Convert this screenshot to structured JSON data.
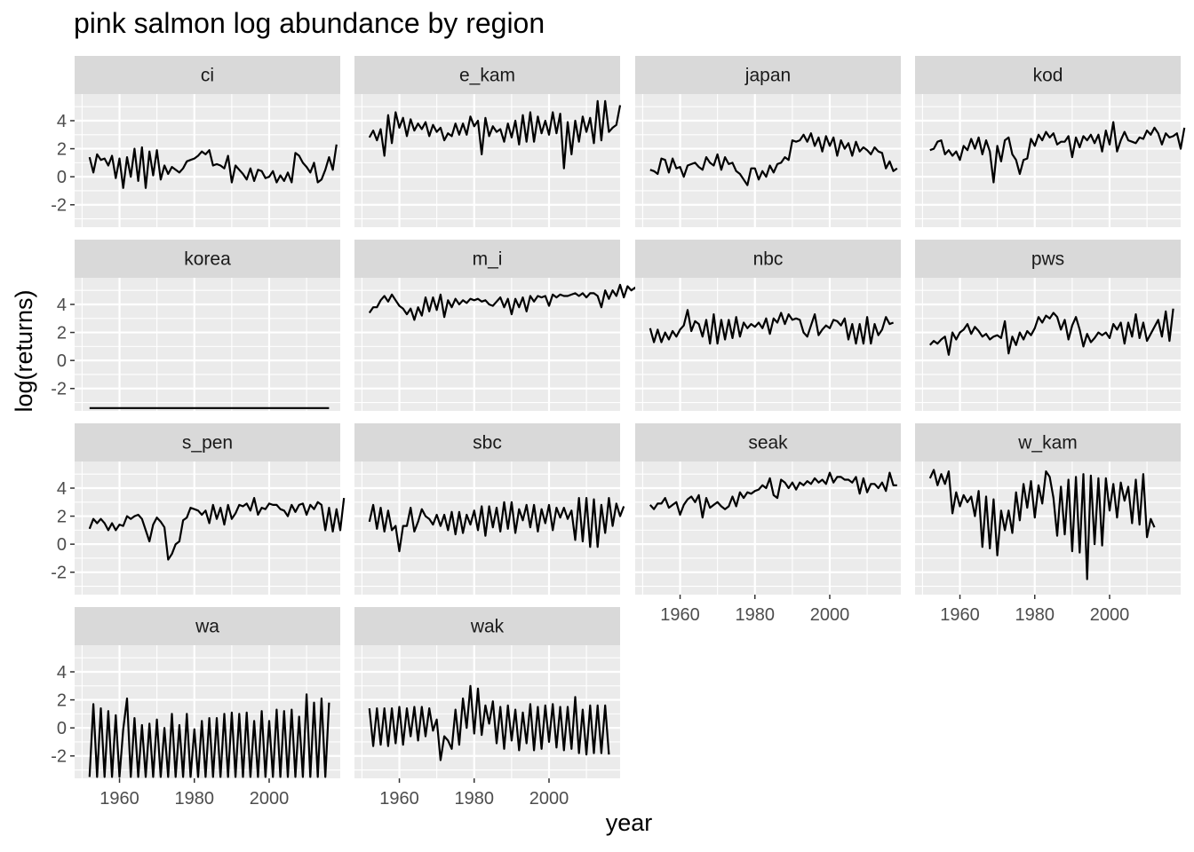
{
  "chart_data": {
    "type": "line",
    "title": "pink salmon log abundance by region",
    "xlabel": "year",
    "ylabel": "log(returns)",
    "xlim": [
      1948,
      2019
    ],
    "ylim": [
      -3.6,
      5.9
    ],
    "x_ticks": [
      1960,
      1980,
      2000
    ],
    "y_ticks": [
      -2,
      0,
      2,
      4
    ],
    "facet_layout": "4 columns, shared axes",
    "colors": {
      "panel_bg": "#EBEBEB",
      "strip_bg": "#D9D9D9",
      "grid": "#FFFFFF",
      "line": "#000000",
      "tick_text": "#4D4D4D"
    },
    "series": [
      {
        "name": "ci",
        "x_start": 1952,
        "values": [
          1.4,
          0.3,
          1.6,
          1.2,
          1.3,
          0.8,
          1.5,
          -0.1,
          1.3,
          -0.8,
          1.4,
          0.0,
          2.0,
          -0.3,
          2.1,
          -0.8,
          1.8,
          0.1,
          1.9,
          -0.2,
          0.8,
          0.2,
          0.7,
          0.5,
          0.3,
          0.6,
          1.1,
          1.2,
          1.3,
          1.5,
          1.8,
          1.6,
          1.9,
          0.8,
          0.9,
          0.8,
          0.6,
          1.5,
          -0.4,
          0.8,
          0.5,
          0.2,
          -0.2,
          0.6,
          -0.3,
          0.5,
          0.4,
          -0.1,
          0.0,
          0.4,
          -0.4,
          0.1,
          -0.3,
          0.3,
          -0.4,
          1.7,
          1.5,
          1.0,
          0.7,
          0.3,
          1.0,
          -0.4,
          -0.2,
          0.5,
          1.4,
          0.5,
          2.3
        ]
      },
      {
        "name": "e_kam",
        "x_start": 1952,
        "values": [
          2.8,
          3.3,
          2.6,
          3.4,
          1.5,
          4.4,
          2.4,
          4.6,
          3.5,
          4.2,
          2.9,
          4.1,
          3.3,
          3.8,
          3.4,
          3.9,
          2.9,
          3.7,
          3.2,
          3.5,
          2.6,
          3.1,
          2.9,
          3.8,
          3.0,
          3.8,
          3.0,
          4.3,
          3.6,
          4.0,
          1.6,
          4.2,
          2.9,
          3.6,
          3.2,
          3.4,
          2.5,
          3.8,
          2.8,
          4.0,
          2.3,
          4.4,
          2.5,
          4.6,
          2.5,
          4.3,
          3.1,
          4.0,
          3.0,
          4.6,
          3.1,
          4.5,
          0.6,
          3.9,
          1.6,
          4.0,
          2.5,
          4.3,
          3.2,
          4.2,
          2.4,
          5.4,
          2.6,
          5.4,
          3.2,
          3.5,
          3.7,
          5.1
        ]
      },
      {
        "name": "japan",
        "x_start": 1952,
        "values": [
          0.5,
          0.4,
          0.2,
          1.3,
          1.2,
          0.3,
          1.3,
          0.6,
          0.7,
          0.0,
          0.8,
          0.9,
          1.0,
          0.7,
          0.5,
          1.4,
          1.0,
          0.8,
          1.6,
          0.5,
          1.4,
          0.9,
          1.0,
          0.4,
          0.2,
          -0.2,
          -0.6,
          0.6,
          0.6,
          -0.2,
          0.4,
          0.0,
          0.8,
          0.3,
          0.9,
          1.0,
          1.4,
          1.2,
          2.6,
          2.5,
          2.6,
          3.0,
          2.5,
          3.1,
          2.2,
          2.8,
          1.8,
          2.9,
          2.2,
          2.8,
          1.5,
          2.6,
          2.0,
          2.4,
          1.5,
          2.5,
          1.8,
          2.1,
          1.9,
          1.6,
          2.1,
          1.8,
          1.7,
          0.6,
          1.1,
          0.4,
          0.6
        ]
      },
      {
        "name": "kod",
        "x_start": 1952,
        "values": [
          1.9,
          2.0,
          2.5,
          2.6,
          1.6,
          1.9,
          1.5,
          1.8,
          1.2,
          2.2,
          1.9,
          2.7,
          2.0,
          2.8,
          1.6,
          2.6,
          1.8,
          -0.4,
          2.2,
          1.1,
          2.6,
          2.8,
          1.6,
          1.2,
          0.2,
          1.2,
          1.3,
          2.7,
          2.2,
          3.0,
          2.6,
          3.2,
          2.8,
          3.1,
          2.3,
          2.5,
          2.5,
          2.9,
          1.4,
          2.8,
          2.1,
          2.9,
          2.6,
          3.0,
          2.4,
          3.0,
          1.8,
          3.3,
          2.3,
          3.9,
          1.8,
          2.6,
          3.2,
          2.6,
          2.5,
          2.4,
          2.8,
          2.7,
          3.3,
          3.0,
          3.5,
          3.1,
          2.3,
          3.1,
          2.8,
          2.9,
          3.1,
          2.0,
          3.5
        ]
      },
      {
        "name": "korea",
        "x_start": 1952,
        "values": [
          -3.4,
          -3.4,
          -3.4,
          -3.4,
          -3.4,
          -3.4,
          -3.4,
          -3.4,
          -3.4,
          -3.4,
          -3.4,
          -3.4,
          -3.4,
          -3.4,
          -3.4,
          -3.4,
          -3.4,
          -3.4,
          -3.4,
          -3.4,
          -3.4,
          -3.4,
          -3.4,
          -3.4,
          -3.4,
          -3.4,
          -3.4,
          -3.4,
          -3.4,
          -3.4,
          -3.4,
          -3.4,
          -3.4,
          -3.4,
          -3.4,
          -3.4,
          -3.4,
          -3.4,
          -3.4,
          -3.4,
          -3.4,
          -3.4,
          -3.4,
          -3.4,
          -3.4,
          -3.4,
          -3.4,
          -3.4,
          -3.4,
          -3.4,
          -3.4,
          -3.4,
          -3.4,
          -3.4,
          -3.4,
          -3.4,
          -3.4,
          -3.4,
          -3.4,
          -3.4,
          -3.4,
          -3.4,
          -3.4,
          -3.4,
          -3.4
        ]
      },
      {
        "name": "m_i",
        "x_start": 1952,
        "values": [
          3.4,
          3.8,
          3.8,
          4.3,
          4.6,
          4.2,
          4.7,
          4.3,
          3.9,
          3.7,
          3.3,
          3.7,
          2.9,
          3.8,
          3.2,
          4.5,
          3.5,
          4.5,
          3.6,
          4.7,
          3.1,
          4.3,
          3.8,
          4.4,
          4.0,
          4.3,
          4.1,
          4.4,
          4.3,
          4.4,
          4.2,
          4.3,
          4.0,
          3.9,
          4.2,
          4.5,
          3.8,
          4.4,
          3.3,
          4.4,
          3.8,
          4.5,
          3.5,
          4.6,
          4.2,
          4.6,
          4.5,
          4.6,
          3.9,
          4.7,
          4.5,
          4.7,
          4.6,
          4.6,
          4.7,
          4.8,
          4.6,
          4.8,
          4.5,
          4.8,
          4.8,
          4.6,
          3.8,
          5.0,
          4.4,
          5.0,
          4.6,
          5.4,
          4.5,
          5.3,
          5.0,
          5.2,
          4.7,
          4.2
        ]
      },
      {
        "name": "nbc",
        "x_start": 1952,
        "values": [
          2.3,
          1.3,
          2.2,
          1.3,
          2.0,
          1.5,
          2.1,
          1.7,
          2.2,
          2.5,
          3.6,
          2.1,
          2.8,
          2.6,
          1.7,
          2.9,
          1.2,
          3.3,
          1.2,
          2.9,
          1.5,
          2.9,
          1.6,
          3.1,
          1.7,
          2.7,
          2.3,
          2.6,
          2.4,
          2.7,
          2.3,
          3.0,
          1.9,
          3.0,
          2.7,
          3.4,
          2.6,
          3.3,
          2.9,
          3.0,
          2.9,
          2.0,
          1.7,
          2.5,
          3.3,
          1.8,
          2.2,
          2.5,
          2.3,
          2.9,
          2.8,
          2.5,
          3.0,
          1.5,
          2.6,
          1.2,
          2.6,
          1.2,
          3.1,
          1.2,
          2.6,
          1.8,
          2.2,
          3.1,
          2.6,
          2.7
        ]
      },
      {
        "name": "pws",
        "x_start": 1952,
        "values": [
          1.1,
          1.4,
          1.2,
          1.5,
          1.7,
          0.4,
          2.0,
          1.5,
          2.0,
          2.2,
          2.6,
          1.9,
          2.4,
          2.1,
          1.7,
          1.9,
          1.5,
          1.7,
          1.8,
          1.6,
          2.8,
          0.5,
          1.7,
          1.1,
          2.0,
          1.5,
          2.1,
          1.8,
          2.3,
          3.1,
          2.7,
          3.2,
          3.0,
          3.4,
          3.1,
          2.2,
          2.9,
          1.5,
          2.5,
          3.1,
          2.2,
          1.0,
          1.9,
          1.3,
          1.6,
          2.0,
          1.8,
          2.0,
          1.6,
          2.6,
          2.2,
          2.7,
          1.2,
          2.7,
          1.7,
          3.3,
          1.6,
          2.7,
          1.4,
          1.9,
          2.4,
          2.9,
          1.7,
          3.5,
          1.4,
          3.7
        ]
      },
      {
        "name": "s_pen",
        "x_start": 1952,
        "values": [
          1.1,
          1.8,
          1.5,
          1.8,
          1.5,
          1.0,
          1.5,
          1.0,
          1.4,
          1.3,
          2.0,
          1.8,
          2.0,
          2.1,
          1.8,
          1.0,
          0.2,
          1.4,
          1.9,
          1.6,
          1.2,
          -1.1,
          -0.7,
          0.0,
          0.2,
          1.7,
          1.9,
          2.6,
          2.5,
          2.4,
          2.1,
          2.4,
          1.5,
          2.8,
          1.8,
          2.6,
          1.4,
          2.8,
          1.8,
          2.2,
          2.8,
          2.7,
          2.9,
          2.4,
          3.3,
          2.1,
          2.6,
          2.5,
          2.9,
          2.8,
          2.8,
          2.5,
          2.4,
          2.0,
          2.8,
          2.3,
          2.8,
          2.9,
          2.1,
          2.8,
          2.5,
          3.0,
          2.8,
          1.0,
          2.6,
          0.9,
          2.5,
          1.0,
          3.3
        ]
      },
      {
        "name": "sbc",
        "x_start": 1952,
        "values": [
          1.6,
          2.8,
          1.1,
          2.6,
          0.9,
          2.4,
          1.0,
          1.3,
          -0.5,
          1.3,
          1.3,
          2.6,
          0.9,
          1.6,
          2.5,
          2.0,
          1.8,
          1.4,
          2.1,
          1.3,
          2.1,
          1.0,
          2.3,
          0.7,
          2.3,
          0.8,
          2.1,
          1.4,
          2.4,
          1.0,
          2.7,
          0.6,
          2.7,
          1.2,
          2.6,
          0.9,
          3.0,
          1.1,
          3.0,
          0.8,
          2.5,
          1.7,
          2.8,
          1.2,
          2.8,
          0.9,
          2.5,
          1.5,
          2.8,
          1.0,
          2.6,
          1.9,
          2.6,
          1.8,
          2.4,
          0.3,
          3.3,
          0.2,
          3.3,
          -0.2,
          3.2,
          -0.2,
          2.8,
          0.8,
          3.3,
          1.3,
          2.9,
          2.0,
          2.7
        ]
      },
      {
        "name": "seak",
        "x_start": 1952,
        "values": [
          2.8,
          2.5,
          2.9,
          2.9,
          3.3,
          2.6,
          2.8,
          3.0,
          2.1,
          2.8,
          3.2,
          3.4,
          3.0,
          3.5,
          1.9,
          3.3,
          2.6,
          2.8,
          3.0,
          2.7,
          2.5,
          2.7,
          3.4,
          2.7,
          3.7,
          3.3,
          3.7,
          3.6,
          3.8,
          3.9,
          4.2,
          4.0,
          4.7,
          3.5,
          3.3,
          4.6,
          4.4,
          4.0,
          4.4,
          3.9,
          4.4,
          4.2,
          4.5,
          4.3,
          4.7,
          4.4,
          4.6,
          4.3,
          5.1,
          4.4,
          4.8,
          4.8,
          4.6,
          4.6,
          4.4,
          4.8,
          3.6,
          4.7,
          3.7,
          4.3,
          4.3,
          4.0,
          4.4,
          3.8,
          5.1,
          4.2,
          4.2
        ]
      },
      {
        "name": "w_kam",
        "x_start": 1952,
        "values": [
          4.7,
          5.3,
          4.2,
          5.0,
          4.3,
          5.2,
          2.2,
          3.7,
          2.7,
          3.5,
          3.0,
          3.4,
          2.0,
          3.8,
          -0.2,
          3.4,
          -0.3,
          3.2,
          -0.8,
          2.4,
          1.0,
          2.4,
          0.8,
          3.7,
          1.7,
          4.3,
          2.6,
          4.5,
          1.9,
          4.2,
          2.9,
          5.2,
          4.8,
          3.3,
          0.6,
          4.1,
          0.7,
          4.6,
          -0.5,
          4.8,
          -0.6,
          5.0,
          -2.5,
          4.9,
          0.0,
          4.7,
          -0.1,
          4.7,
          2.4,
          4.3,
          1.9,
          4.4,
          3.1,
          4.1,
          1.5,
          4.6,
          1.4,
          5.0,
          0.5,
          1.8,
          1.2
        ]
      },
      {
        "name": "wa",
        "x_start": 1952,
        "values": [
          -3.5,
          1.7,
          -3.5,
          1.4,
          -3.5,
          1.2,
          -3.5,
          0.9,
          -3.5,
          -0.1,
          2.1,
          -3.5,
          0.7,
          -3.5,
          0.2,
          -3.5,
          0.3,
          -3.5,
          0.6,
          -3.5,
          0.0,
          -3.5,
          1.0,
          -3.5,
          0.2,
          -3.5,
          1.0,
          -3.5,
          -0.1,
          -3.5,
          0.5,
          -3.5,
          0.7,
          -3.5,
          0.7,
          -3.5,
          1.0,
          -3.5,
          1.1,
          -3.5,
          1.0,
          -3.5,
          1.1,
          -3.5,
          0.5,
          -3.5,
          1.2,
          -3.5,
          0.5,
          -3.5,
          1.3,
          -3.5,
          1.2,
          -3.5,
          1.3,
          -3.5,
          0.8,
          -3.5,
          2.4,
          -3.5,
          1.8,
          -3.5,
          2.1,
          -3.5,
          1.8
        ]
      },
      {
        "name": "wak",
        "x_start": 1952,
        "values": [
          1.4,
          -1.3,
          1.4,
          -1.2,
          1.4,
          -1.3,
          1.4,
          -1.1,
          1.5,
          -1.2,
          1.4,
          -0.6,
          1.5,
          -0.9,
          1.5,
          -0.6,
          1.4,
          -0.2,
          0.6,
          -2.3,
          -0.6,
          -0.9,
          -1.5,
          1.3,
          -1.2,
          2.1,
          0.0,
          3.0,
          -0.4,
          2.8,
          -0.5,
          1.6,
          0.3,
          1.9,
          -1.1,
          1.5,
          -1.5,
          1.6,
          -0.9,
          1.3,
          -1.6,
          1.1,
          -1.1,
          1.7,
          -1.6,
          1.5,
          -1.5,
          1.6,
          -1.0,
          1.7,
          -1.4,
          1.5,
          -1.6,
          1.5,
          -1.5,
          2.2,
          -1.8,
          1.3,
          -1.9,
          1.6,
          -1.8,
          1.6,
          -1.8,
          1.6,
          -1.9
        ]
      }
    ]
  }
}
